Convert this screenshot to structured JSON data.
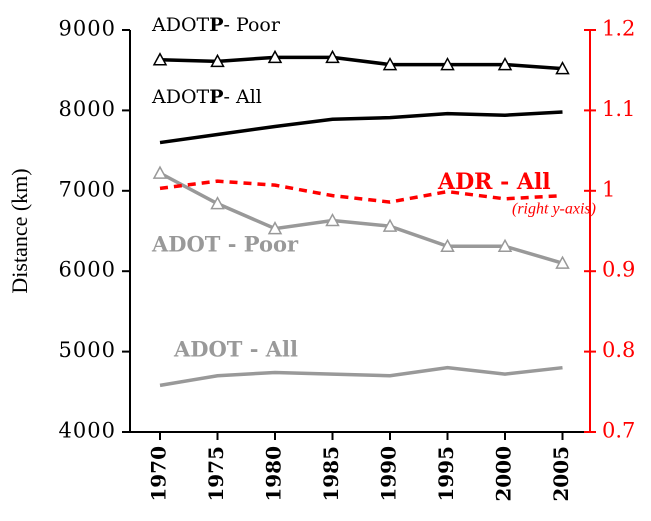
{
  "chart_data": {
    "type": "line",
    "categories": [
      "1970",
      "1975",
      "1980",
      "1985",
      "1990",
      "1995",
      "2000",
      "2005"
    ],
    "y_label": "Distance (km)",
    "ylim": [
      4000,
      9000
    ],
    "yticks": [
      4000,
      5000,
      6000,
      7000,
      8000,
      9000
    ],
    "y2lim": [
      0.7,
      1.2
    ],
    "y2ticks": [
      0.7,
      0.8,
      0.9,
      1,
      1.1,
      1.2
    ],
    "y2color": "#ff0000",
    "annotation": "(right y-axis)",
    "series": [
      {
        "name": "ADOTP- Poor",
        "color": "#000000",
        "marker": "triangle",
        "values": [
          8630,
          8610,
          8660,
          8660,
          8570,
          8570,
          8570,
          8520
        ]
      },
      {
        "name": "ADOTP- All",
        "color": "#000000",
        "values": [
          7600,
          7700,
          7800,
          7890,
          7910,
          7960,
          7940,
          7980
        ]
      },
      {
        "name": "ADOT - Poor",
        "color": "#999999",
        "marker": "triangle",
        "values": [
          7220,
          6840,
          6530,
          6630,
          6560,
          6310,
          6310,
          6100
        ]
      },
      {
        "name": "ADOT - All",
        "color": "#999999",
        "values": [
          4580,
          4700,
          4740,
          4720,
          4700,
          4800,
          4720,
          4800
        ]
      },
      {
        "name": "ADR - All",
        "color": "#ff0000",
        "dashed": true,
        "axis": "y2",
        "values": [
          1.003,
          1.012,
          1.007,
          0.994,
          0.986,
          0.999,
          0.99,
          0.994
        ]
      }
    ]
  }
}
